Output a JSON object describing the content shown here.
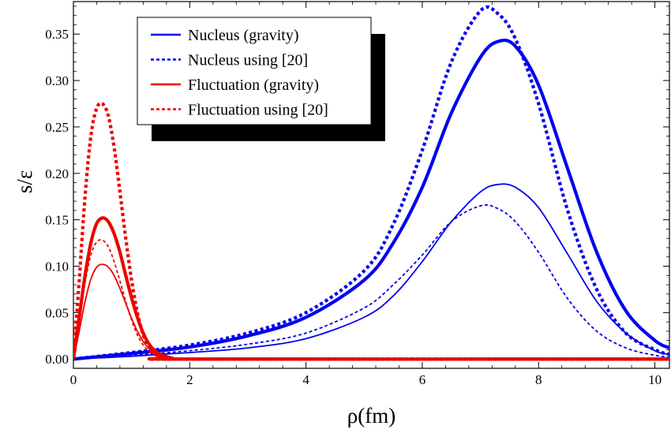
{
  "chart_data": {
    "type": "line",
    "title": "",
    "xlabel": "ρ(fm)",
    "ylabel": "s/ε",
    "xlim": [
      0,
      10.25
    ],
    "ylim": [
      -0.01,
      0.385
    ],
    "x_ticks": [
      "0",
      "2",
      "4",
      "6",
      "8",
      "10"
    ],
    "y_ticks": [
      "0.00",
      "0.05",
      "0.10",
      "0.15",
      "0.20",
      "0.25",
      "0.30",
      "0.35"
    ],
    "legend_position": "top-left",
    "series": [
      {
        "name": "Nucleus (gravity)",
        "style": "solid",
        "color": "#0000ee",
        "x": [
          0,
          1,
          2,
          3,
          4,
          5,
          5.5,
          6,
          6.5,
          7,
          7.3,
          7.6,
          8,
          8.5,
          9,
          9.5,
          10,
          10.25
        ],
        "y": [
          0,
          0.006,
          0.013,
          0.025,
          0.045,
          0.085,
          0.125,
          0.185,
          0.265,
          0.325,
          0.342,
          0.337,
          0.295,
          0.205,
          0.115,
          0.052,
          0.02,
          0.012
        ]
      },
      {
        "name": "Nucleus (gravity)",
        "style": "solid-thin",
        "color": "#0000ee",
        "x": [
          0,
          1,
          2,
          3,
          4,
          5,
          5.5,
          6,
          6.5,
          7,
          7.3,
          7.6,
          8,
          8.5,
          9,
          9.5,
          10,
          10.25
        ],
        "y": [
          0,
          0.003,
          0.007,
          0.012,
          0.022,
          0.045,
          0.068,
          0.105,
          0.148,
          0.18,
          0.188,
          0.185,
          0.163,
          0.113,
          0.062,
          0.028,
          0.009,
          0.005
        ]
      },
      {
        "name": "Nucleus using [20]",
        "style": "dotted",
        "color": "#0000ee",
        "x": [
          0,
          1,
          2,
          3,
          4,
          5,
          5.5,
          6,
          6.5,
          7,
          7.3,
          7.6,
          8,
          8.5,
          9,
          9.5,
          10,
          10.25
        ],
        "y": [
          0,
          0.007,
          0.015,
          0.028,
          0.05,
          0.095,
          0.145,
          0.225,
          0.32,
          0.375,
          0.372,
          0.345,
          0.275,
          0.16,
          0.075,
          0.028,
          0.01,
          0.005
        ]
      },
      {
        "name": "Nucleus using [20]",
        "style": "dotted-thin",
        "color": "#0000ee",
        "x": [
          0,
          1,
          2,
          3,
          4,
          5,
          5.5,
          6,
          6.5,
          7,
          7.3,
          7.6,
          8,
          8.5,
          9,
          9.5,
          10,
          10.25
        ],
        "y": [
          0,
          0.004,
          0.009,
          0.016,
          0.028,
          0.055,
          0.08,
          0.112,
          0.148,
          0.165,
          0.162,
          0.148,
          0.115,
          0.065,
          0.03,
          0.012,
          0.004,
          0.002
        ]
      },
      {
        "name": "Fluctuation (gravity)",
        "style": "solid",
        "color": "#ee0000",
        "x": [
          0,
          0.1,
          0.2,
          0.3,
          0.4,
          0.5,
          0.6,
          0.7,
          0.8,
          0.9,
          1,
          1.1,
          1.2,
          1.3,
          1.4,
          1.5,
          1.7,
          2,
          10.25
        ],
        "y": [
          0,
          0.045,
          0.09,
          0.125,
          0.146,
          0.152,
          0.148,
          0.135,
          0.115,
          0.09,
          0.066,
          0.045,
          0.028,
          0.016,
          0.009,
          0.005,
          0.001,
          0,
          0
        ]
      },
      {
        "name": "Fluctuation (gravity)",
        "style": "solid-thin",
        "color": "#ee0000",
        "x": [
          0,
          0.1,
          0.2,
          0.3,
          0.4,
          0.5,
          0.6,
          0.7,
          0.8,
          0.9,
          1,
          1.1,
          1.2,
          1.3,
          1.4,
          1.5,
          1.7,
          2,
          10.25
        ],
        "y": [
          0,
          0.03,
          0.062,
          0.086,
          0.099,
          0.102,
          0.099,
          0.09,
          0.076,
          0.06,
          0.044,
          0.03,
          0.019,
          0.011,
          0.006,
          0.003,
          0.001,
          0,
          0
        ]
      },
      {
        "name": "Fluctuation using [20]",
        "style": "dotted",
        "color": "#ee0000",
        "x": [
          0,
          0.1,
          0.2,
          0.3,
          0.4,
          0.5,
          0.6,
          0.7,
          0.8,
          0.9,
          1,
          1.1,
          1.2,
          1.3,
          1.4,
          1.5,
          1.7,
          2,
          10.25
        ],
        "y": [
          0,
          0.085,
          0.175,
          0.24,
          0.27,
          0.275,
          0.262,
          0.228,
          0.18,
          0.13,
          0.085,
          0.05,
          0.026,
          0.013,
          0.006,
          0.002,
          0,
          0,
          0
        ]
      },
      {
        "name": "Fluctuation using [20]",
        "style": "dotted-thin",
        "color": "#ee0000",
        "x": [
          0,
          0.1,
          0.2,
          0.3,
          0.4,
          0.5,
          0.6,
          0.7,
          0.8,
          0.9,
          1,
          1.1,
          1.2,
          1.3,
          1.4,
          1.5,
          1.7,
          2,
          10.25
        ],
        "y": [
          0,
          0.04,
          0.082,
          0.112,
          0.126,
          0.128,
          0.121,
          0.105,
          0.084,
          0.062,
          0.042,
          0.026,
          0.015,
          0.008,
          0.004,
          0.002,
          0,
          0,
          0
        ]
      }
    ],
    "legend": [
      {
        "label": "Nucleus (gravity)",
        "style": "solid",
        "color": "#0000ee"
      },
      {
        "label": "Nucleus using [20]",
        "style": "dotted",
        "color": "#0000ee"
      },
      {
        "label": "Fluctuation (gravity)",
        "style": "solid",
        "color": "#ee0000"
      },
      {
        "label": "Fluctuation using [20]",
        "style": "dotted",
        "color": "#ee0000"
      }
    ]
  }
}
